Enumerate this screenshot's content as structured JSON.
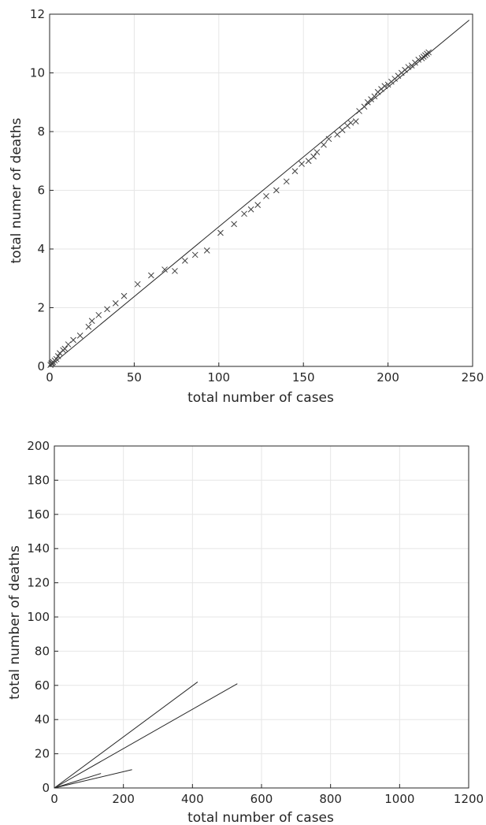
{
  "chart_data": [
    {
      "type": "scatter",
      "xlabel": "total number of cases",
      "ylabel": "total numer of deaths",
      "xlim": [
        0,
        250
      ],
      "ylim": [
        0,
        12
      ],
      "xticks": [
        0,
        50,
        100,
        150,
        200,
        250
      ],
      "yticks": [
        0,
        2,
        4,
        6,
        8,
        10,
        12
      ],
      "grid": true,
      "series": [
        {
          "marker": "x",
          "points": [
            [
              0.5,
              0.05
            ],
            [
              1,
              0.1
            ],
            [
              1.5,
              0.12
            ],
            [
              2,
              0.15
            ],
            [
              3,
              0.2
            ],
            [
              4,
              0.25
            ],
            [
              5,
              0.35
            ],
            [
              6,
              0.45
            ],
            [
              8,
              0.55
            ],
            [
              9,
              0.6
            ],
            [
              11,
              0.75
            ],
            [
              14,
              0.9
            ],
            [
              18,
              1.05
            ],
            [
              23,
              1.35
            ],
            [
              25,
              1.55
            ],
            [
              29,
              1.75
            ],
            [
              34,
              1.95
            ],
            [
              39,
              2.15
            ],
            [
              44,
              2.4
            ],
            [
              52,
              2.8
            ],
            [
              60,
              3.1
            ],
            [
              68,
              3.3
            ],
            [
              74,
              3.25
            ],
            [
              80,
              3.6
            ],
            [
              86,
              3.8
            ],
            [
              93,
              3.95
            ],
            [
              101,
              4.55
            ],
            [
              109,
              4.85
            ],
            [
              115,
              5.2
            ],
            [
              119,
              5.35
            ],
            [
              123,
              5.5
            ],
            [
              128,
              5.8
            ],
            [
              134,
              6.0
            ],
            [
              140,
              6.3
            ],
            [
              145,
              6.65
            ],
            [
              149,
              6.9
            ],
            [
              153,
              7.0
            ],
            [
              156,
              7.15
            ],
            [
              158,
              7.3
            ],
            [
              162,
              7.55
            ],
            [
              165,
              7.75
            ],
            [
              170,
              7.9
            ],
            [
              173,
              8.05
            ],
            [
              176,
              8.2
            ],
            [
              178,
              8.3
            ],
            [
              181,
              8.35
            ],
            [
              183,
              8.7
            ],
            [
              186,
              8.85
            ],
            [
              188,
              9.0
            ],
            [
              190,
              9.1
            ],
            [
              192,
              9.2
            ],
            [
              194,
              9.35
            ],
            [
              196,
              9.45
            ],
            [
              198,
              9.55
            ],
            [
              200,
              9.6
            ],
            [
              202,
              9.7
            ],
            [
              204,
              9.8
            ],
            [
              206,
              9.9
            ],
            [
              208,
              10.0
            ],
            [
              210,
              10.1
            ],
            [
              212,
              10.2
            ],
            [
              214,
              10.25
            ],
            [
              216,
              10.35
            ],
            [
              218,
              10.45
            ],
            [
              220,
              10.5
            ],
            [
              221,
              10.55
            ],
            [
              222,
              10.6
            ],
            [
              223,
              10.65
            ],
            [
              224,
              10.7
            ]
          ]
        }
      ],
      "fit_line": {
        "x": [
          0,
          248
        ],
        "y": [
          0,
          11.8
        ]
      }
    },
    {
      "type": "line",
      "xlabel": "total number of cases",
      "ylabel": "total number of deaths",
      "xlim": [
        0,
        1200
      ],
      "ylim": [
        0,
        200
      ],
      "xticks": [
        0,
        200,
        400,
        600,
        800,
        1000,
        1200
      ],
      "yticks": [
        0,
        20,
        40,
        60,
        80,
        100,
        120,
        140,
        160,
        180,
        200
      ],
      "grid": true,
      "series": [
        {
          "x": [
            0,
            415
          ],
          "y": [
            0,
            62
          ]
        },
        {
          "x": [
            0,
            530
          ],
          "y": [
            0,
            61
          ]
        },
        {
          "x": [
            0,
            225
          ],
          "y": [
            0,
            10.7
          ]
        },
        {
          "x": [
            0,
            135
          ],
          "y": [
            0,
            8.5
          ]
        }
      ]
    }
  ]
}
